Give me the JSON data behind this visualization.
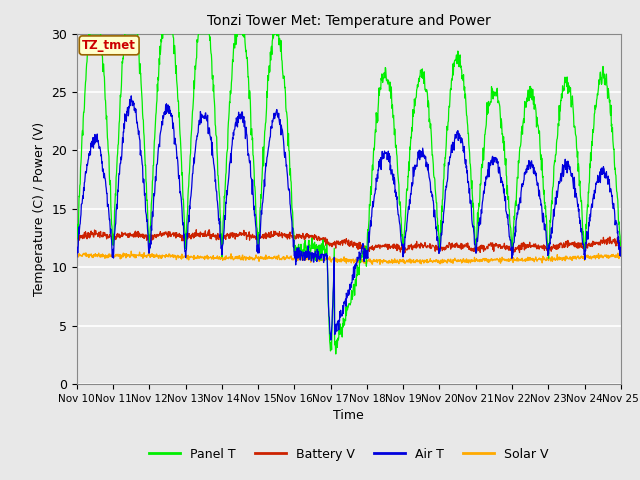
{
  "title": "Tonzi Tower Met: Temperature and Power",
  "ylabel": "Temperature (C) / Power (V)",
  "xlabel": "Time",
  "x_tick_labels": [
    "Nov 10",
    "Nov 11",
    "Nov 12",
    "Nov 13",
    "Nov 14",
    "Nov 15",
    "Nov 16",
    "Nov 17",
    "Nov 18",
    "Nov 19",
    "Nov 20",
    "Nov 21",
    "Nov 22",
    "Nov 23",
    "Nov 24",
    "Nov 25"
  ],
  "ylim": [
    0,
    30
  ],
  "yticks": [
    0,
    5,
    10,
    15,
    20,
    25,
    30
  ],
  "legend_labels": [
    "Panel T",
    "Battery V",
    "Air T",
    "Solar V"
  ],
  "legend_colors": [
    "#00ee00",
    "#cc2200",
    "#0000dd",
    "#ffaa00"
  ],
  "annotation_text": "TZ_tmet",
  "annotation_box_color": "#ffffcc",
  "annotation_text_color": "#cc0000",
  "fig_bg_color": "#e8e8e8",
  "plot_bg_color": "#e8e8e8",
  "panel_T_color": "#00ee00",
  "battery_V_color": "#cc2200",
  "air_T_color": "#0000dd",
  "solar_V_color": "#ffaa00"
}
